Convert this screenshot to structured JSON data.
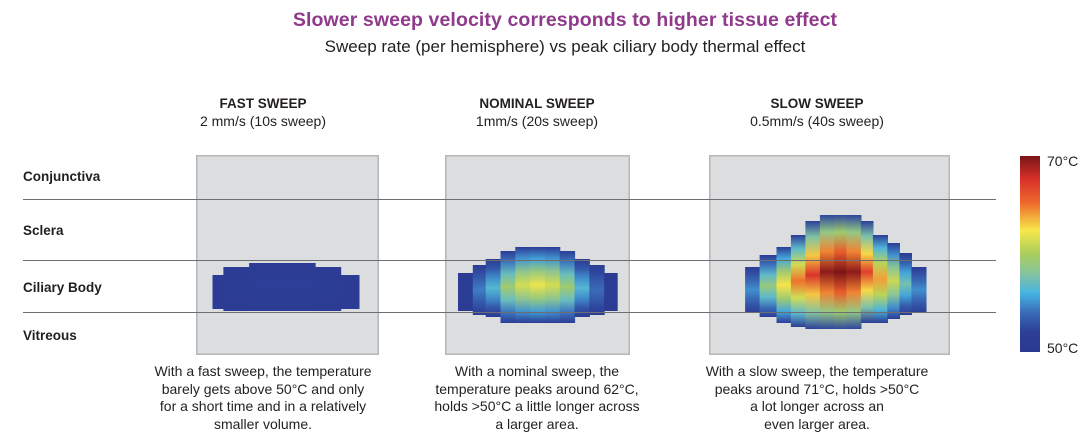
{
  "header": {
    "title": "Slower sweep velocity corresponds to higher tissue effect",
    "subtitle": "Sweep rate (per hemisphere) vs peak ciliary body thermal effect"
  },
  "layers": [
    "Conjunctiva",
    "Sclera",
    "Ciliary Body",
    "Vitreous"
  ],
  "colorbar": {
    "max_label": "70°C",
    "min_label": "50°C",
    "min": 50,
    "max": 70
  },
  "chart_data": {
    "type": "heatmap",
    "title": "Slower sweep velocity corresponds to higher tissue effect",
    "subtitle": "Sweep rate (per hemisphere) vs peak ciliary body thermal effect",
    "value_range": [
      50,
      70
    ],
    "unit": "°C",
    "panels": [
      {
        "name": "FAST SWEEP",
        "rate": "2 mm/s (10s sweep)",
        "peak_temp": 51,
        "caption": "With a fast sweep, the temperature barely gets above 50°C and only for a short time and in a relatively smaller volume.",
        "caption_lines": [
          "With a fast sweep, the temperature",
          "barely gets above 50°C and only",
          "for a short time and in a relatively",
          "smaller volume."
        ],
        "columns": [
          {
            "x0": 0.09,
            "x1": 0.15,
            "top": 0.6,
            "bottom": 0.77,
            "peak": 50.3
          },
          {
            "x0": 0.15,
            "x1": 0.29,
            "top": 0.56,
            "bottom": 0.78,
            "peak": 50.6
          },
          {
            "x0": 0.29,
            "x1": 0.65,
            "top": 0.54,
            "bottom": 0.78,
            "peak": 51.0
          },
          {
            "x0": 0.65,
            "x1": 0.79,
            "top": 0.56,
            "bottom": 0.78,
            "peak": 50.6
          },
          {
            "x0": 0.79,
            "x1": 0.89,
            "top": 0.6,
            "bottom": 0.77,
            "peak": 50.3
          }
        ]
      },
      {
        "name": "NOMINAL SWEEP",
        "rate": "1mm/s (20s sweep)",
        "peak_temp": 62,
        "caption": "With a nominal sweep, the temperature peaks around 62°C, holds >50°C a little longer across a larger area.",
        "caption_lines": [
          "With a nominal sweep, the",
          "temperature peaks around 62°C,",
          "holds >50°C a little longer across",
          "a larger area."
        ],
        "columns": [
          {
            "x0": 0.07,
            "x1": 0.15,
            "top": 0.59,
            "bottom": 0.78,
            "peak": 50.6
          },
          {
            "x0": 0.15,
            "x1": 0.22,
            "top": 0.55,
            "bottom": 0.8,
            "peak": 53.5
          },
          {
            "x0": 0.22,
            "x1": 0.3,
            "top": 0.52,
            "bottom": 0.81,
            "peak": 56.5
          },
          {
            "x0": 0.3,
            "x1": 0.38,
            "top": 0.48,
            "bottom": 0.84,
            "peak": 59.5
          },
          {
            "x0": 0.38,
            "x1": 0.46,
            "top": 0.46,
            "bottom": 0.84,
            "peak": 61.3
          },
          {
            "x0": 0.46,
            "x1": 0.54,
            "top": 0.46,
            "bottom": 0.84,
            "peak": 62.0
          },
          {
            "x0": 0.54,
            "x1": 0.62,
            "top": 0.46,
            "bottom": 0.84,
            "peak": 61.3
          },
          {
            "x0": 0.62,
            "x1": 0.7,
            "top": 0.48,
            "bottom": 0.84,
            "peak": 59.5
          },
          {
            "x0": 0.7,
            "x1": 0.78,
            "top": 0.52,
            "bottom": 0.81,
            "peak": 56.5
          },
          {
            "x0": 0.78,
            "x1": 0.86,
            "top": 0.55,
            "bottom": 0.8,
            "peak": 53.0
          },
          {
            "x0": 0.86,
            "x1": 0.93,
            "top": 0.59,
            "bottom": 0.78,
            "peak": 50.6
          }
        ]
      },
      {
        "name": "SLOW SWEEP",
        "rate": "0.5mm/s (40s sweep)",
        "peak_temp": 71,
        "caption": "With a slow sweep, the temperature peaks around 71°C, holds >50°C a lot longer across an even larger area.",
        "caption_lines": [
          "With a slow sweep, the temperature",
          "peaks around 71°C, holds >50°C",
          "a lot longer across an",
          "even larger area."
        ],
        "columns": [
          {
            "x0": 0.15,
            "x1": 0.21,
            "top": 0.56,
            "bottom": 0.79,
            "peak": 54.0
          },
          {
            "x0": 0.21,
            "x1": 0.28,
            "top": 0.5,
            "bottom": 0.81,
            "peak": 59.0
          },
          {
            "x0": 0.28,
            "x1": 0.34,
            "top": 0.46,
            "bottom": 0.84,
            "peak": 62.5
          },
          {
            "x0": 0.34,
            "x1": 0.4,
            "top": 0.4,
            "bottom": 0.86,
            "peak": 65.0
          },
          {
            "x0": 0.4,
            "x1": 0.46,
            "top": 0.33,
            "bottom": 0.87,
            "peak": 67.5
          },
          {
            "x0": 0.46,
            "x1": 0.52,
            "top": 0.3,
            "bottom": 0.87,
            "peak": 69.5
          },
          {
            "x0": 0.52,
            "x1": 0.57,
            "top": 0.3,
            "bottom": 0.87,
            "peak": 71.0
          },
          {
            "x0": 0.57,
            "x1": 0.63,
            "top": 0.3,
            "bottom": 0.87,
            "peak": 69.5
          },
          {
            "x0": 0.63,
            "x1": 0.68,
            "top": 0.33,
            "bottom": 0.84,
            "peak": 67.0
          },
          {
            "x0": 0.68,
            "x1": 0.74,
            "top": 0.4,
            "bottom": 0.84,
            "peak": 64.0
          },
          {
            "x0": 0.74,
            "x1": 0.79,
            "top": 0.44,
            "bottom": 0.82,
            "peak": 61.0
          },
          {
            "x0": 0.79,
            "x1": 0.84,
            "top": 0.49,
            "bottom": 0.8,
            "peak": 57.5
          },
          {
            "x0": 0.84,
            "x1": 0.9,
            "top": 0.56,
            "bottom": 0.79,
            "peak": 54.0
          }
        ]
      }
    ]
  }
}
